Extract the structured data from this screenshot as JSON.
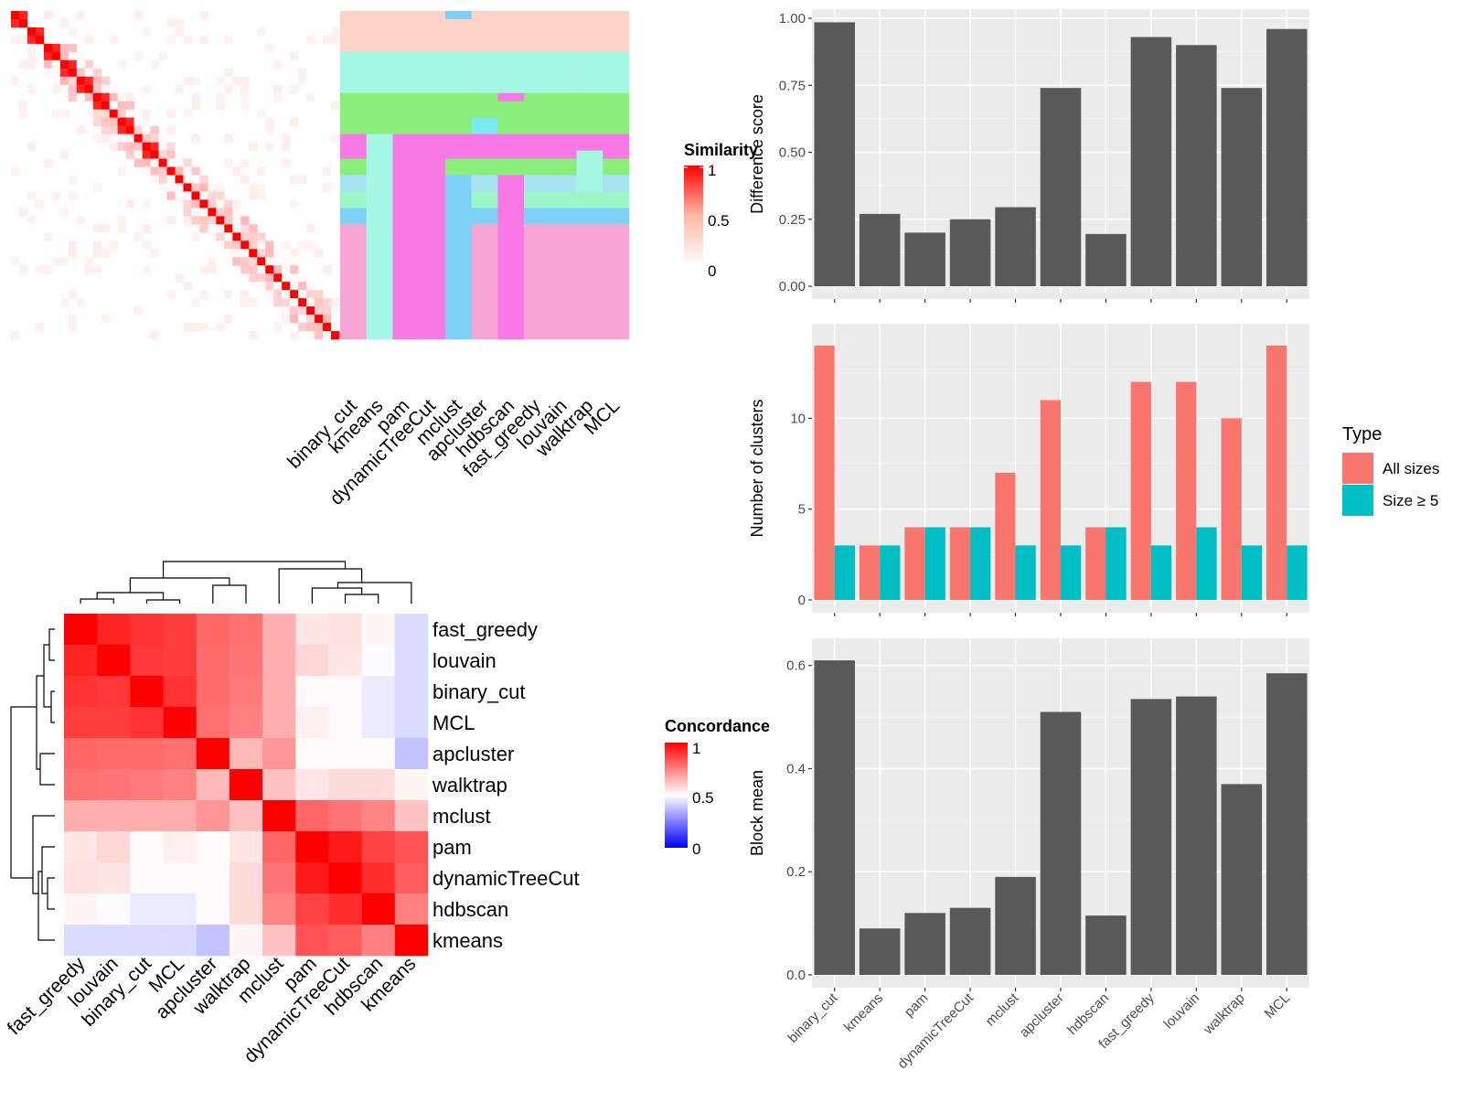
{
  "methods": [
    "binary_cut",
    "kmeans",
    "pam",
    "dynamicTreeCut",
    "mclust",
    "apcluster",
    "hdbscan",
    "fast_greedy",
    "louvain",
    "walktrap",
    "MCL"
  ],
  "legends": {
    "similarity": {
      "title": "Similarity",
      "ticks": [
        "1",
        "0.5",
        "0"
      ]
    },
    "concordance": {
      "title": "Concordance",
      "ticks": [
        "1",
        "0.5",
        "0"
      ]
    },
    "type": {
      "title": "Type",
      "items": [
        {
          "label": "All sizes",
          "color": "#F8766D"
        },
        {
          "label": "Size ≥ 5",
          "color": "#00BFC4"
        }
      ]
    }
  },
  "chart_data": [
    {
      "type": "heatmap",
      "id": "similarity_matrix",
      "n": 40,
      "blocks": [
        [
          0,
          1
        ],
        [
          2,
          3
        ],
        [
          4,
          5
        ],
        [
          6,
          7
        ],
        [
          8,
          9
        ],
        [
          10,
          11
        ],
        [
          12,
          12
        ],
        [
          13,
          14
        ],
        [
          15,
          15
        ],
        [
          16,
          17
        ],
        [
          18,
          18
        ],
        [
          19,
          19
        ],
        [
          20,
          20
        ],
        [
          21,
          21
        ],
        [
          22,
          22
        ],
        [
          23,
          23
        ],
        [
          24,
          24
        ],
        [
          25,
          25
        ],
        [
          26,
          26
        ],
        [
          27,
          27
        ],
        [
          28,
          28
        ],
        [
          29,
          29
        ],
        [
          30,
          30
        ],
        [
          31,
          31
        ],
        [
          32,
          32
        ],
        [
          33,
          33
        ],
        [
          34,
          34
        ],
        [
          35,
          35
        ],
        [
          36,
          36
        ],
        [
          37,
          37
        ],
        [
          38,
          38
        ],
        [
          39,
          39
        ]
      ],
      "scale": [
        0,
        1
      ],
      "legend": "similarity"
    },
    {
      "type": "table",
      "id": "cluster_membership",
      "columns": [
        "binary_cut",
        "kmeans",
        "pam",
        "dynamicTreeCut",
        "mclust",
        "apcluster",
        "hdbscan",
        "fast_greedy",
        "louvain",
        "walktrap",
        "MCL"
      ]
    },
    {
      "type": "heatmap",
      "id": "concordance_matrix",
      "rows": [
        "fast_greedy",
        "louvain",
        "binary_cut",
        "MCL",
        "apcluster",
        "walktrap",
        "mclust",
        "pam",
        "dynamicTreeCut",
        "hdbscan",
        "kmeans"
      ],
      "columns": [
        "fast_greedy",
        "louvain",
        "binary_cut",
        "MCL",
        "apcluster",
        "walktrap",
        "mclust",
        "pam",
        "dynamicTreeCut",
        "hdbscan",
        "kmeans"
      ],
      "values": [
        [
          1.0,
          0.93,
          0.9,
          0.88,
          0.8,
          0.78,
          0.66,
          0.55,
          0.56,
          0.52,
          0.43
        ],
        [
          0.93,
          1.0,
          0.89,
          0.88,
          0.79,
          0.77,
          0.66,
          0.58,
          0.55,
          0.49,
          0.43
        ],
        [
          0.9,
          0.89,
          1.0,
          0.9,
          0.79,
          0.76,
          0.66,
          0.51,
          0.51,
          0.46,
          0.43
        ],
        [
          0.88,
          0.88,
          0.9,
          1.0,
          0.78,
          0.75,
          0.66,
          0.53,
          0.51,
          0.46,
          0.43
        ],
        [
          0.8,
          0.79,
          0.79,
          0.78,
          1.0,
          0.64,
          0.71,
          0.51,
          0.51,
          0.51,
          0.38
        ],
        [
          0.78,
          0.77,
          0.76,
          0.75,
          0.64,
          1.0,
          0.62,
          0.55,
          0.57,
          0.57,
          0.52
        ],
        [
          0.66,
          0.66,
          0.66,
          0.66,
          0.71,
          0.62,
          1.0,
          0.8,
          0.77,
          0.74,
          0.62
        ],
        [
          0.55,
          0.58,
          0.51,
          0.53,
          0.51,
          0.55,
          0.8,
          1.0,
          0.95,
          0.87,
          0.84
        ],
        [
          0.56,
          0.55,
          0.51,
          0.51,
          0.51,
          0.57,
          0.77,
          0.95,
          1.0,
          0.91,
          0.82
        ],
        [
          0.52,
          0.49,
          0.46,
          0.46,
          0.51,
          0.57,
          0.74,
          0.87,
          0.91,
          1.0,
          0.75
        ],
        [
          0.43,
          0.43,
          0.43,
          0.43,
          0.38,
          0.52,
          0.62,
          0.84,
          0.82,
          0.75,
          1.0
        ]
      ],
      "scale": [
        0,
        1
      ],
      "legend": "concordance"
    },
    {
      "type": "bar",
      "id": "difference_score",
      "categories": [
        "binary_cut",
        "kmeans",
        "pam",
        "dynamicTreeCut",
        "mclust",
        "apcluster",
        "hdbscan",
        "fast_greedy",
        "louvain",
        "walktrap",
        "MCL"
      ],
      "values": [
        0.985,
        0.27,
        0.2,
        0.25,
        0.295,
        0.74,
        0.195,
        0.93,
        0.9,
        0.74,
        0.96
      ],
      "ylabel": "Difference score",
      "ylim": [
        0,
        1.0
      ],
      "yticks": [
        "0.00",
        "0.25",
        "0.50",
        "0.75",
        "1.00"
      ],
      "grid": true
    },
    {
      "type": "bar",
      "id": "number_of_clusters",
      "categories": [
        "binary_cut",
        "kmeans",
        "pam",
        "dynamicTreeCut",
        "mclust",
        "apcluster",
        "hdbscan",
        "fast_greedy",
        "louvain",
        "walktrap",
        "MCL"
      ],
      "series": [
        {
          "name": "All sizes",
          "values": [
            14,
            3,
            4,
            4,
            7,
            11,
            4,
            12,
            12,
            10,
            14
          ]
        },
        {
          "name": "Size ≥ 5",
          "values": [
            3,
            3,
            4,
            4,
            3,
            3,
            4,
            3,
            4,
            3,
            3
          ]
        }
      ],
      "ylabel": "Number of clusters",
      "ylim": [
        0,
        14.7
      ],
      "yticks": [
        "0",
        "5",
        "10"
      ],
      "legend_position": "right",
      "grid": true
    },
    {
      "type": "bar",
      "id": "block_mean",
      "categories": [
        "binary_cut",
        "kmeans",
        "pam",
        "dynamicTreeCut",
        "mclust",
        "apcluster",
        "hdbscan",
        "fast_greedy",
        "louvain",
        "walktrap",
        "MCL"
      ],
      "values": [
        0.61,
        0.09,
        0.12,
        0.13,
        0.19,
        0.51,
        0.115,
        0.535,
        0.54,
        0.37,
        0.585
      ],
      "ylabel": "Block mean",
      "ylim": [
        0,
        0.635
      ],
      "yticks": [
        "0.0",
        "0.2",
        "0.4",
        "0.6"
      ],
      "grid": true
    }
  ]
}
